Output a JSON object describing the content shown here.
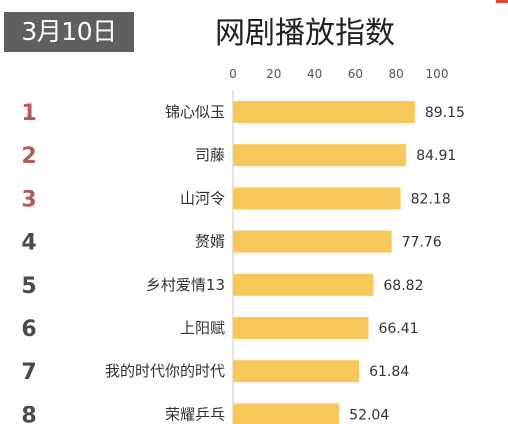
{
  "header": {
    "date": "3月10日"
  },
  "colors": {
    "bar": "#f9c85a",
    "rank_top3": "#b9595a",
    "rank_other": "#4a4a4a",
    "badge_bg": "#5f5f5f",
    "axis_line": "#c8c8c8"
  },
  "chart_data": {
    "type": "bar",
    "orientation": "horizontal",
    "title": "网剧播放指数",
    "xlim": [
      0,
      100
    ],
    "x_ticks": [
      "0",
      "20",
      "40",
      "60",
      "80",
      "100"
    ],
    "ranks": [
      "1",
      "2",
      "3",
      "4",
      "5",
      "6",
      "7",
      "8"
    ],
    "categories": [
      "锦心似玉",
      "司藤",
      "山河令",
      "赘婿",
      "乡村爱情13",
      "上阳赋",
      "我的时代你的时代",
      "荣耀乒乓"
    ],
    "values": [
      89.15,
      84.91,
      82.18,
      77.76,
      68.82,
      66.41,
      61.84,
      52.04
    ],
    "value_labels": [
      "89.15",
      "84.91",
      "82.18",
      "77.76",
      "68.82",
      "66.41",
      "61.84",
      "52.04"
    ]
  }
}
